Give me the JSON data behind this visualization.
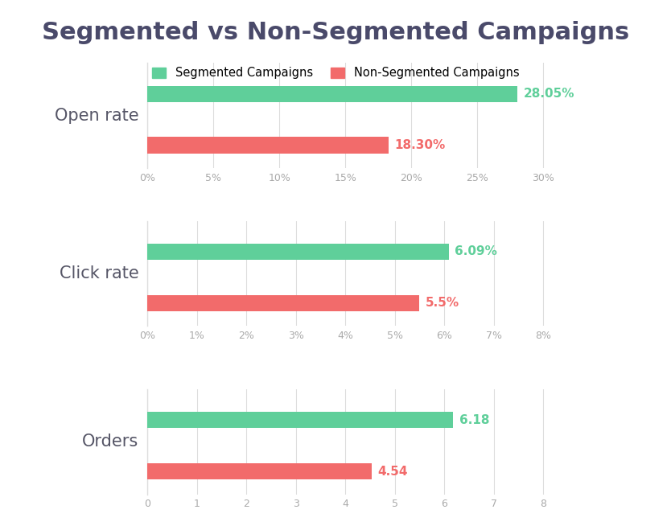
{
  "title": "Segmented vs Non-Segmented Campaigns",
  "title_fontsize": 22,
  "title_color": "#4a4a6a",
  "title_fontweight": "bold",
  "background_color": "#ffffff",
  "segmented_color": "#5fcf9a",
  "nonsegmented_color": "#f26b6b",
  "legend_labels": [
    "Segmented Campaigns",
    "Non-Segmented Campaigns"
  ],
  "subplots": [
    {
      "label": "Open rate",
      "segmented_value": 28.05,
      "nonsegmented_value": 18.3,
      "segmented_label": "28.05%",
      "nonsegmented_label": "18.30%",
      "xlim_max": 30,
      "xticks": [
        0,
        5,
        10,
        15,
        20,
        25,
        30
      ],
      "xticklabels": [
        "0%",
        "5%",
        "10%",
        "15%",
        "20%",
        "25%",
        "30%"
      ]
    },
    {
      "label": "Click rate",
      "segmented_value": 6.09,
      "nonsegmented_value": 5.5,
      "segmented_label": "6.09%",
      "nonsegmented_label": "5.5%",
      "xlim_max": 8,
      "xticks": [
        0,
        1,
        2,
        3,
        4,
        5,
        6,
        7,
        8
      ],
      "xticklabels": [
        "0%",
        "1%",
        "2%",
        "3%",
        "4%",
        "5%",
        "6%",
        "7%",
        "8%"
      ]
    },
    {
      "label": "Orders",
      "segmented_value": 6.18,
      "nonsegmented_value": 4.54,
      "segmented_label": "6.18",
      "nonsegmented_label": "4.54",
      "xlim_max": 8,
      "xticks": [
        0,
        1,
        2,
        3,
        4,
        5,
        6,
        7,
        8
      ],
      "xticklabels": [
        "0",
        "1",
        "2",
        "3",
        "4",
        "5",
        "6",
        "7",
        "8"
      ]
    }
  ],
  "bar_height": 0.32,
  "label_fontsize": 11,
  "tick_fontsize": 9,
  "tick_color": "#aaaaaa",
  "grid_color": "#dddddd",
  "category_fontsize": 15,
  "category_color": "#555566"
}
